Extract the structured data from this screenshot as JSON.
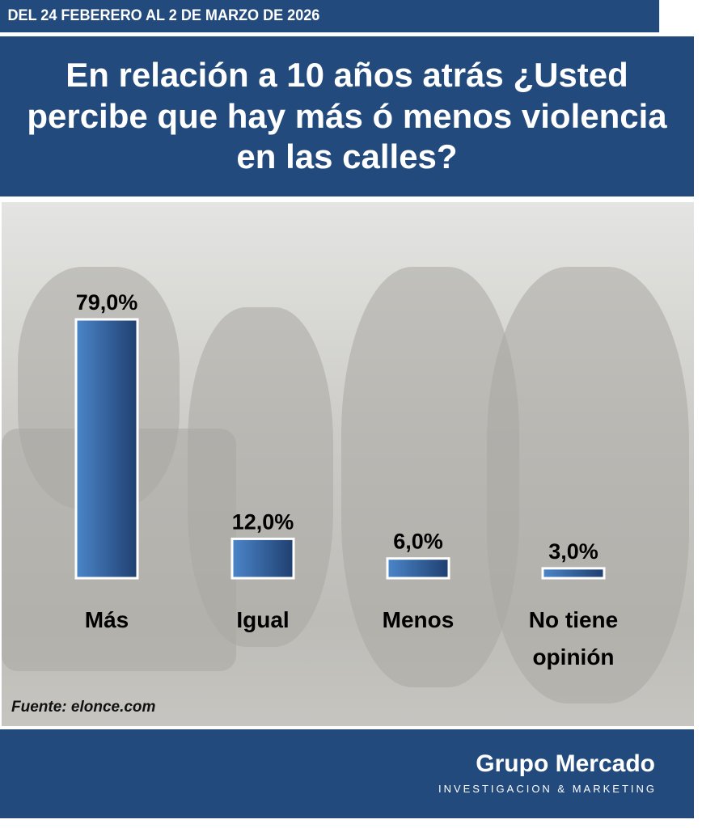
{
  "header": {
    "date_range": "DEL 24 FEBERERO AL 2 DE MARZO DE 2026",
    "title": "En relación a 10 años atrás ¿Usted percibe que hay más ó menos violencia en las calles?"
  },
  "chart_data": {
    "type": "bar",
    "title": "En relación a 10 años atrás ¿Usted percibe que hay más ó menos violencia en las calles?",
    "categories": [
      "Más",
      "Igual",
      "Menos",
      "No tiene opinión"
    ],
    "values": [
      79.0,
      12.0,
      6.0,
      3.0
    ],
    "data_labels": [
      "79,0%",
      "12,0%",
      "6,0%",
      "3,0%"
    ],
    "ylim": [
      0,
      100
    ],
    "grid": false,
    "legend": "none",
    "bar_color": "#3a6eb5"
  },
  "source": "Fuente: elonce.com",
  "footer": {
    "brand": "Grupo Mercado",
    "tagline": "INVESTIGACION & MARKETING"
  },
  "colors": {
    "header_bg": "#234a7d"
  }
}
